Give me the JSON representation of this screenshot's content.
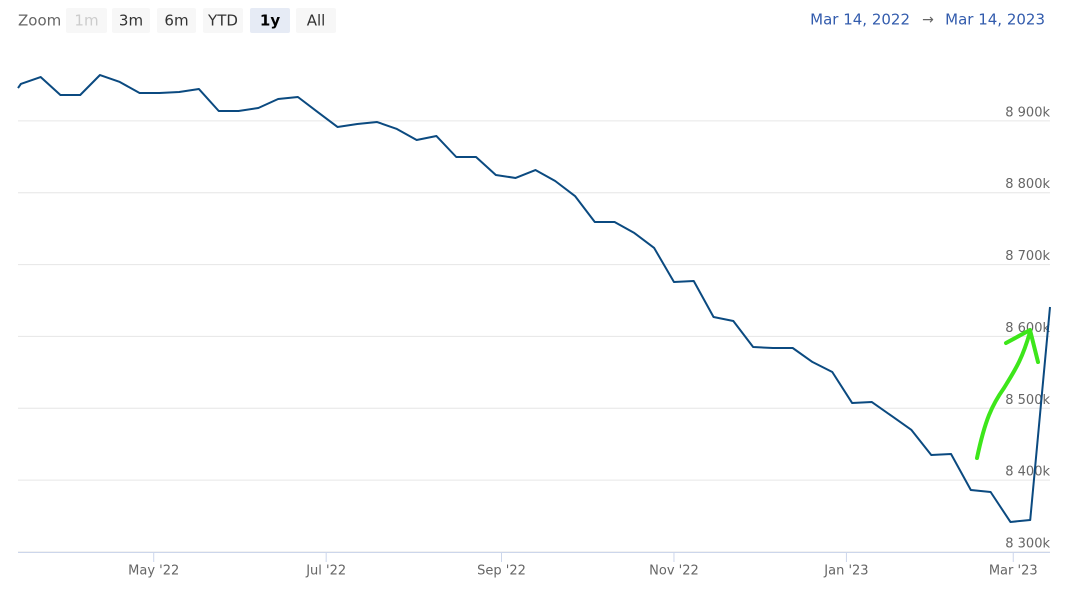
{
  "chart_data": {
    "type": "line",
    "range_selector": {
      "label": "Zoom",
      "buttons": [
        "1m",
        "3m",
        "6m",
        "YTD",
        "1y",
        "All"
      ],
      "selected": 4,
      "disabled": [
        0
      ],
      "from": "Mar 14, 2022",
      "separator": "→",
      "to": "Mar 14, 2023"
    },
    "x": [
      "2022-03-14",
      "2022-03-15",
      "2022-03-22",
      "2022-03-29",
      "2022-04-05",
      "2022-04-12",
      "2022-04-19",
      "2022-04-26",
      "2022-05-03",
      "2022-05-10",
      "2022-05-17",
      "2022-05-24",
      "2022-05-31",
      "2022-06-07",
      "2022-06-14",
      "2022-06-21",
      "2022-06-28",
      "2022-07-05",
      "2022-07-12",
      "2022-07-19",
      "2022-07-26",
      "2022-08-02",
      "2022-08-09",
      "2022-08-16",
      "2022-08-23",
      "2022-08-30",
      "2022-09-06",
      "2022-09-13",
      "2022-09-20",
      "2022-09-27",
      "2022-10-04",
      "2022-10-11",
      "2022-10-18",
      "2022-10-25",
      "2022-11-01",
      "2022-11-08",
      "2022-11-15",
      "2022-11-22",
      "2022-11-29",
      "2022-12-06",
      "2022-12-13",
      "2022-12-20",
      "2022-12-27",
      "2023-01-03",
      "2023-01-10",
      "2023-01-17",
      "2023-01-24",
      "2023-01-31",
      "2023-02-07",
      "2023-02-14",
      "2023-02-21",
      "2023-02-28",
      "2023-03-07",
      "2023-03-14"
    ],
    "series": [
      {
        "color": "#0b4a80",
        "values": [
          8945700,
          8951300,
          8961000,
          8936000,
          8936000,
          8963800,
          8954100,
          8938800,
          8938800,
          8940200,
          8944300,
          8913700,
          8913700,
          8917900,
          8930400,
          8933200,
          8912300,
          8891500,
          8895600,
          8898400,
          8888700,
          8873400,
          8878900,
          8849700,
          8849700,
          8824700,
          8820500,
          8831600,
          8816300,
          8795400,
          8759200,
          8759200,
          8743900,
          8723100,
          8675700,
          8677100,
          8627000,
          8621500,
          8585300,
          8583900,
          8583900,
          8564400,
          8550500,
          8507400,
          8508700,
          8489300,
          8469800,
          8435000,
          8436400,
          8386300,
          8383500,
          8341800,
          8344500,
          8641000
        ]
      }
    ],
    "xlim": [
      "2022-03-14",
      "2023-03-14"
    ],
    "xticks": [
      {
        "value": "2022-05-01",
        "label": "May '22"
      },
      {
        "value": "2022-07-01",
        "label": "Jul '22"
      },
      {
        "value": "2022-09-01",
        "label": "Sep '22"
      },
      {
        "value": "2022-11-01",
        "label": "Nov '22"
      },
      {
        "value": "2023-01-01",
        "label": "Jan '23"
      },
      {
        "value": "2023-03-01",
        "label": "Mar '23"
      }
    ],
    "ylim": [
      8300000,
      9000000
    ],
    "yticks": [
      {
        "value": 8300000,
        "label": "8 300k"
      },
      {
        "value": 8400000,
        "label": "8 400k"
      },
      {
        "value": 8500000,
        "label": "8 500k"
      },
      {
        "value": 8600000,
        "label": "8 600k"
      },
      {
        "value": 8700000,
        "label": "8 700k"
      },
      {
        "value": 8800000,
        "label": "8 800k"
      },
      {
        "value": 8900000,
        "label": "8 900k"
      }
    ],
    "grid": true
  }
}
